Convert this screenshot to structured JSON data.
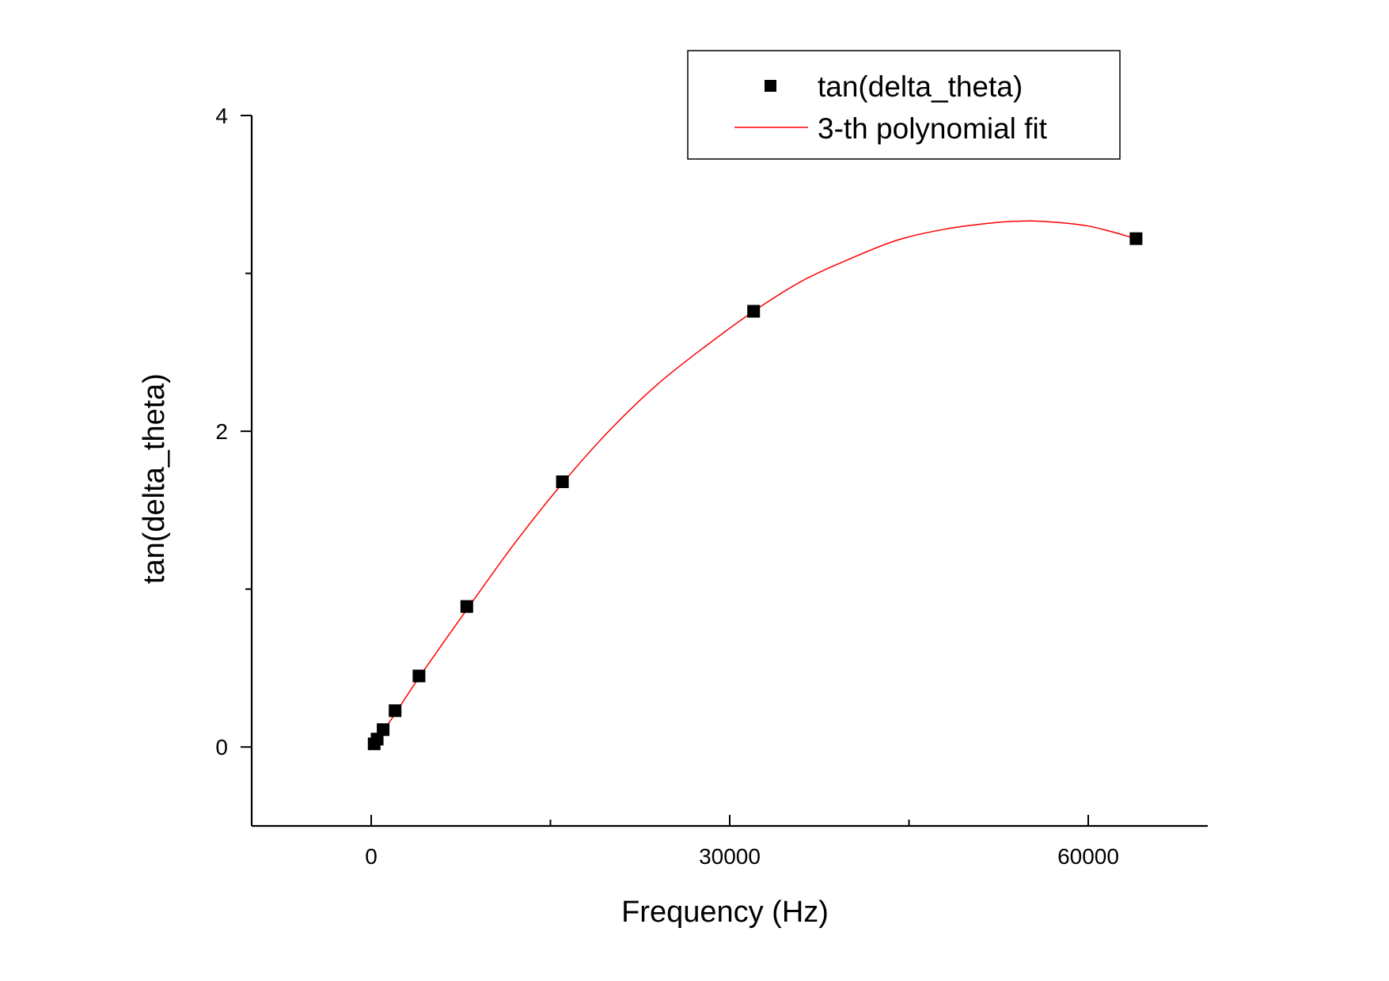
{
  "chart_data": {
    "type": "scatter",
    "xlabel": "Frequency (Hz)",
    "ylabel": "tan(delta_theta)",
    "xlim": [
      -10000,
      70000
    ],
    "ylim": [
      -0.5,
      4
    ],
    "x_ticks": [
      0,
      15000,
      30000,
      45000,
      60000
    ],
    "x_tick_labels": [
      "0",
      "",
      "30000",
      "",
      "60000"
    ],
    "y_ticks": [
      0,
      1,
      2,
      3,
      4
    ],
    "y_tick_labels": [
      "0",
      "",
      "2",
      "",
      "4"
    ],
    "grid": false,
    "legend_position": "top-right",
    "series": [
      {
        "name": "tan(delta_theta)",
        "kind": "scatter",
        "marker": "square",
        "color": "#000000",
        "x": [
          250,
          500,
          1000,
          2000,
          4000,
          8000,
          16000,
          32000,
          64000
        ],
        "y": [
          0.02,
          0.05,
          0.11,
          0.23,
          0.45,
          0.89,
          1.68,
          2.76,
          3.22
        ]
      },
      {
        "name": "3-th polynomial fit",
        "kind": "line",
        "color": "#ff0000",
        "x": [
          250,
          2000,
          4000,
          8000,
          12000,
          16000,
          20000,
          24000,
          28000,
          32000,
          36000,
          40000,
          44000,
          48000,
          52000,
          54000,
          56000,
          60000,
          64000
        ],
        "y": [
          0.02,
          0.21,
          0.44,
          0.87,
          1.29,
          1.67,
          2.01,
          2.3,
          2.54,
          2.76,
          2.95,
          3.09,
          3.21,
          3.28,
          3.32,
          3.33,
          3.33,
          3.3,
          3.22
        ]
      }
    ]
  }
}
